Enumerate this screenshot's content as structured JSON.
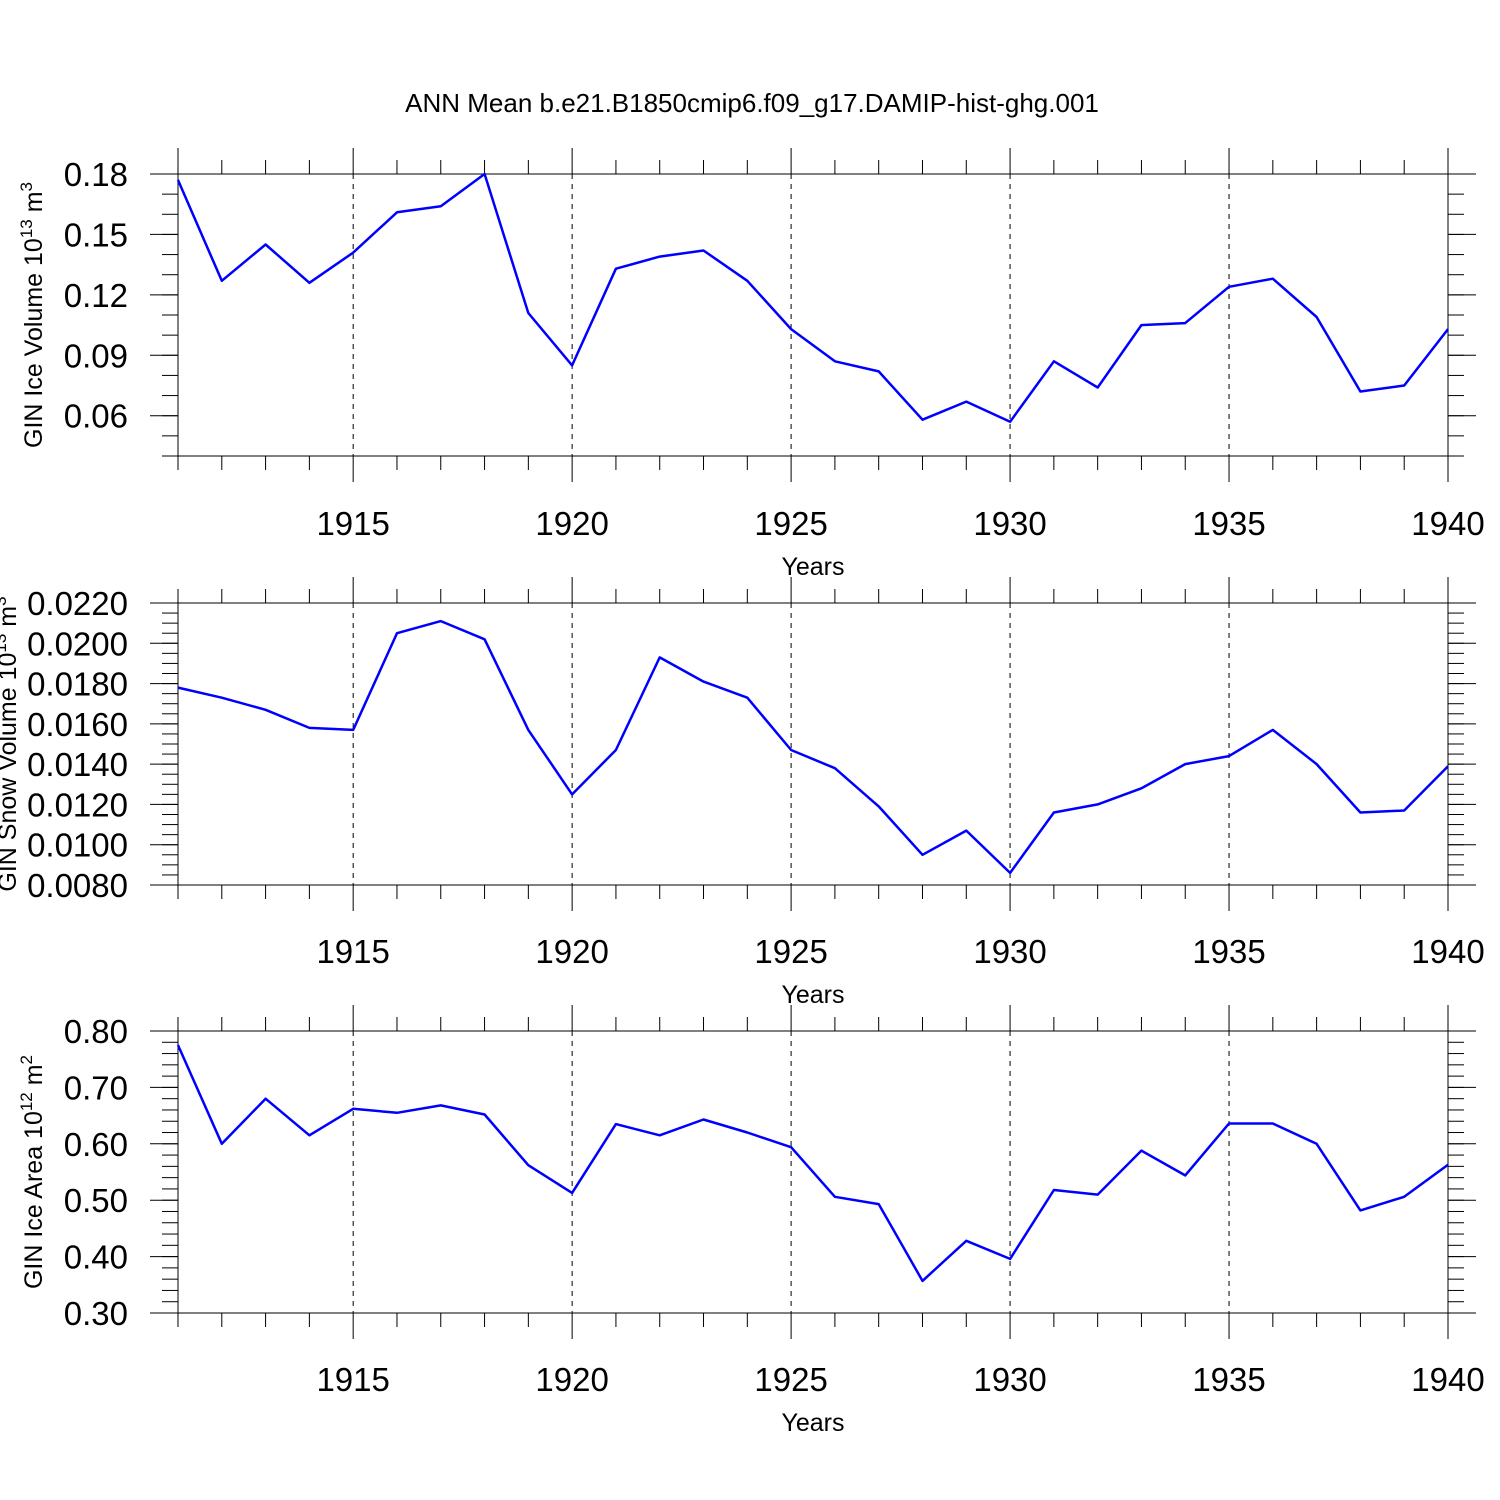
{
  "title": "ANN Mean b.e21.B1850cmip6.f09_g17.DAMIP-hist-ghg.001",
  "colors": {
    "line": "#0000ff",
    "axis": "#000000"
  },
  "chart_data": [
    {
      "type": "line",
      "ylabel_parts": [
        "GIN Ice Volume 10",
        "13",
        " m",
        "3"
      ],
      "xlabel": "Years",
      "xlim": [
        1911,
        1940
      ],
      "ylim": [
        0.04,
        0.18
      ],
      "grid": "vertical dashed at labeled years",
      "x_ticks": [
        1915,
        1920,
        1925,
        1930,
        1935,
        1940
      ],
      "y_ticks": [
        0.06,
        0.09,
        0.12,
        0.15,
        0.18
      ],
      "y_tick_labels": [
        "0.06",
        "0.09",
        "0.12",
        "0.15",
        "0.18"
      ],
      "y_minor_step": 0.01,
      "x": [
        1911,
        1912,
        1913,
        1914,
        1915,
        1916,
        1917,
        1918,
        1919,
        1920,
        1921,
        1922,
        1923,
        1924,
        1925,
        1926,
        1927,
        1928,
        1929,
        1930,
        1931,
        1932,
        1933,
        1934,
        1935,
        1936,
        1937,
        1938,
        1939,
        1940
      ],
      "series": [
        {
          "values": [
            0.177,
            0.127,
            0.145,
            0.126,
            0.141,
            0.161,
            0.164,
            0.18,
            0.111,
            0.085,
            0.133,
            0.139,
            0.142,
            0.127,
            0.103,
            0.087,
            0.082,
            0.058,
            0.067,
            0.057,
            0.087,
            0.074,
            0.105,
            0.106,
            0.124,
            0.128,
            0.109,
            0.072,
            0.075,
            0.103
          ]
        }
      ]
    },
    {
      "type": "line",
      "ylabel_parts": [
        "GIN Snow Volume 10",
        "13",
        " m",
        "3"
      ],
      "xlabel": "Years",
      "xlim": [
        1911,
        1940
      ],
      "ylim": [
        0.008,
        0.022
      ],
      "grid": "vertical dashed at labeled years",
      "x_ticks": [
        1915,
        1920,
        1925,
        1930,
        1935,
        1940
      ],
      "y_ticks": [
        0.008,
        0.01,
        0.012,
        0.014,
        0.016,
        0.018,
        0.02,
        0.022
      ],
      "y_tick_labels": [
        "0.0080",
        "0.0100",
        "0.0120",
        "0.0140",
        "0.0160",
        "0.0180",
        "0.0200",
        "0.0220"
      ],
      "y_minor_step": 0.0005,
      "x": [
        1911,
        1912,
        1913,
        1914,
        1915,
        1916,
        1917,
        1918,
        1919,
        1920,
        1921,
        1922,
        1923,
        1924,
        1925,
        1926,
        1927,
        1928,
        1929,
        1930,
        1931,
        1932,
        1933,
        1934,
        1935,
        1936,
        1937,
        1938,
        1939,
        1940
      ],
      "series": [
        {
          "values": [
            0.0178,
            0.0173,
            0.0167,
            0.0158,
            0.0157,
            0.0205,
            0.0211,
            0.0202,
            0.0157,
            0.0125,
            0.0147,
            0.0193,
            0.0181,
            0.0173,
            0.0147,
            0.0138,
            0.0119,
            0.0095,
            0.0107,
            0.0086,
            0.0116,
            0.012,
            0.0128,
            0.014,
            0.0144,
            0.0157,
            0.014,
            0.0116,
            0.0117,
            0.0139
          ]
        }
      ]
    },
    {
      "type": "line",
      "ylabel_parts": [
        "GIN Ice Area 10",
        "12",
        " m",
        "2"
      ],
      "xlabel": "Years",
      "xlim": [
        1911,
        1940
      ],
      "ylim": [
        0.3,
        0.8
      ],
      "grid": "vertical dashed at labeled years",
      "x_ticks": [
        1915,
        1920,
        1925,
        1930,
        1935,
        1940
      ],
      "y_ticks": [
        0.3,
        0.4,
        0.5,
        0.6,
        0.7,
        0.8
      ],
      "y_tick_labels": [
        "0.30",
        "0.40",
        "0.50",
        "0.60",
        "0.70",
        "0.80"
      ],
      "y_minor_step": 0.02,
      "x": [
        1911,
        1912,
        1913,
        1914,
        1915,
        1916,
        1917,
        1918,
        1919,
        1920,
        1921,
        1922,
        1923,
        1924,
        1925,
        1926,
        1927,
        1928,
        1929,
        1930,
        1931,
        1932,
        1933,
        1934,
        1935,
        1936,
        1937,
        1938,
        1939,
        1940
      ],
      "series": [
        {
          "values": [
            0.775,
            0.6,
            0.68,
            0.615,
            0.662,
            0.655,
            0.668,
            0.652,
            0.562,
            0.513,
            0.635,
            0.615,
            0.643,
            0.62,
            0.594,
            0.506,
            0.493,
            0.357,
            0.428,
            0.396,
            0.518,
            0.51,
            0.588,
            0.544,
            0.636,
            0.636,
            0.6,
            0.482,
            0.506,
            0.563
          ]
        }
      ]
    }
  ]
}
